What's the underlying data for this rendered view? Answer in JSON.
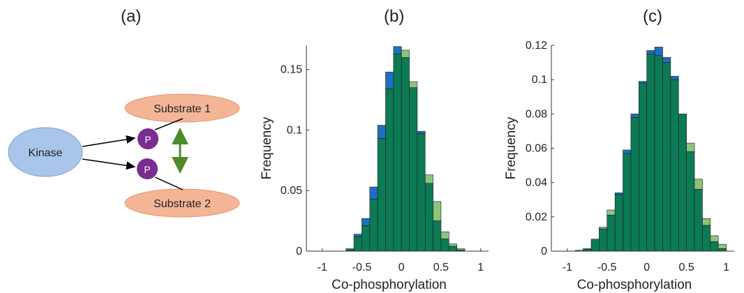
{
  "panels": {
    "a": {
      "label": "(a)",
      "kinase": "Kinase",
      "substrate1": "Substrate 1",
      "substrate2": "Substrate 2",
      "p_label": "P"
    }
  },
  "colors": {
    "kinase_fill": "#a9c6ea",
    "substrate_fill": "#f4b596",
    "phospho_fill": "#7a2c90",
    "double_arrow": "#4d8a2a",
    "bar_blue": "#1f6fbf",
    "bar_lightgreen": "#8cc47a",
    "bar_darkgreen": "#0c7a55"
  },
  "chart_data": [
    {
      "label": "(b)",
      "type": "bar",
      "xlabel": "Co-phosphorylation",
      "ylabel": "Frequency",
      "xlim": [
        -1.2,
        1.1
      ],
      "ylim": [
        0,
        0.17
      ],
      "xticks": [
        "-1",
        "-0.5",
        "0",
        "0.5",
        "1"
      ],
      "xtick_values": [
        -1,
        -0.5,
        0,
        0.5,
        1
      ],
      "yticks": [
        "0",
        "0.05",
        "0.1",
        "0.15"
      ],
      "ytick_values": [
        0,
        0.05,
        0.1,
        0.15
      ],
      "bin_width": 0.1,
      "bin_starts": [
        -0.7,
        -0.6,
        -0.5,
        -0.4,
        -0.3,
        -0.2,
        -0.1,
        0.0,
        0.1,
        0.2,
        0.3,
        0.4,
        0.5,
        0.6,
        0.7
      ],
      "series": [
        {
          "values": [
            0.002,
            0.014,
            0.027,
            0.053,
            0.104,
            0.148,
            0.169,
            0.16,
            0.135,
            0.099,
            0.056,
            0.025,
            0.01,
            0.004,
            0.001
          ]
        },
        {
          "values": [
            0.001,
            0.012,
            0.021,
            0.043,
            0.093,
            0.134,
            0.163,
            0.166,
            0.14,
            0.097,
            0.063,
            0.041,
            0.016,
            0.006,
            0.002
          ]
        }
      ]
    },
    {
      "label": "(c)",
      "type": "bar",
      "xlabel": "Co-phosphorylation",
      "ylabel": "Frequency",
      "xlim": [
        -1.2,
        1.1
      ],
      "ylim": [
        0,
        0.12
      ],
      "xticks": [
        "-1",
        "-0.5",
        "0",
        "0.5",
        "1"
      ],
      "xtick_values": [
        -1,
        -0.5,
        0,
        0.5,
        1
      ],
      "yticks": [
        "0",
        "0.02",
        "0.04",
        "0.06",
        "0.08",
        "0.1",
        "0.12"
      ],
      "ytick_values": [
        0,
        0.02,
        0.04,
        0.06,
        0.08,
        0.1,
        0.12
      ],
      "bin_width": 0.1,
      "bin_starts": [
        -0.9,
        -0.8,
        -0.7,
        -0.6,
        -0.5,
        -0.4,
        -0.3,
        -0.2,
        -0.1,
        0.0,
        0.1,
        0.2,
        0.3,
        0.4,
        0.5,
        0.6,
        0.7,
        0.8,
        0.9
      ],
      "series": [
        {
          "values": [
            0.0005,
            0.001,
            0.007,
            0.013,
            0.021,
            0.034,
            0.059,
            0.08,
            0.099,
            0.117,
            0.119,
            0.113,
            0.102,
            0.08,
            0.058,
            0.036,
            0.015,
            0.0055,
            0.0015
          ]
        },
        {
          "values": [
            0.0005,
            0.0015,
            0.007,
            0.014,
            0.024,
            0.033,
            0.057,
            0.078,
            0.098,
            0.115,
            0.114,
            0.11,
            0.1,
            0.08,
            0.063,
            0.042,
            0.019,
            0.009,
            0.004
          ]
        }
      ]
    }
  ]
}
